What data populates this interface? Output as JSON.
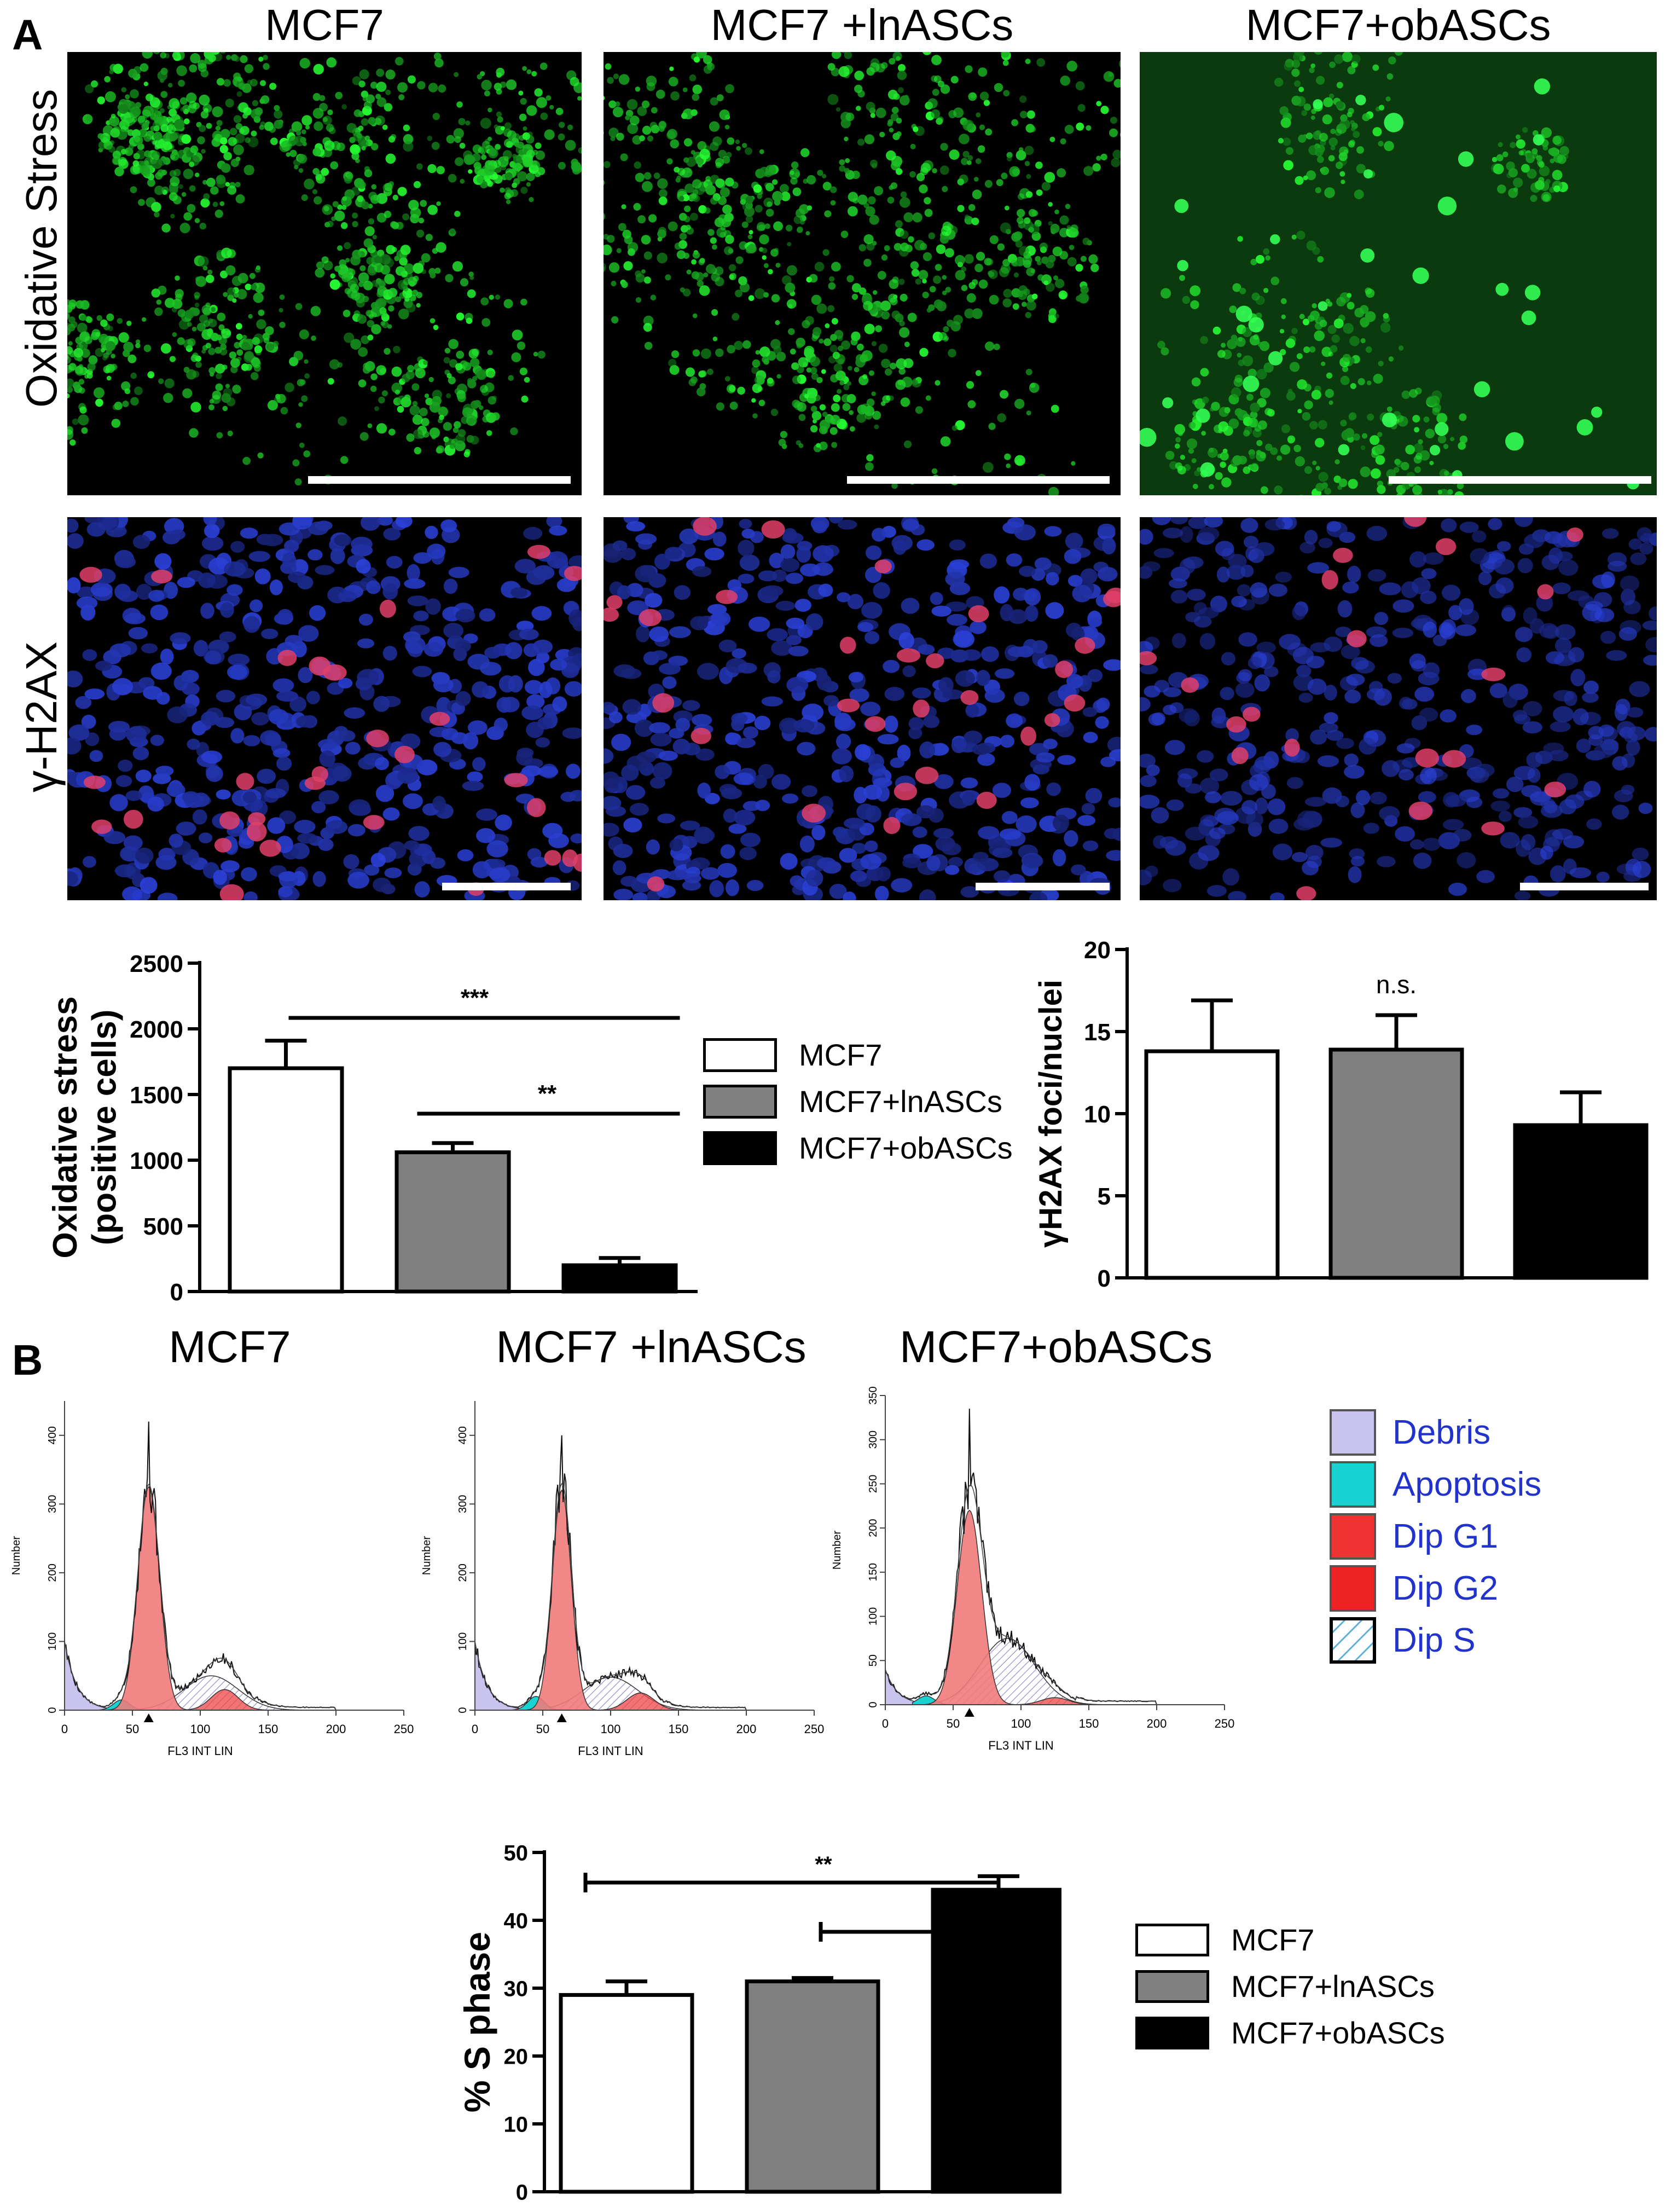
{
  "panel_a_label": "A",
  "panel_b_label": "B",
  "micrograph_columns": [
    "MCF7",
    "MCF7 +lnASCs",
    "MCF7+obASCs"
  ],
  "micrograph_rows": [
    "Oxidative Stress",
    "γ-H2AX"
  ],
  "colors": {
    "mcf7": "#ffffff",
    "lnascs": "#808080",
    "obascs": "#000000",
    "debris": "#c8c4ee",
    "apoptosis": "#19d3d3",
    "dip_g1": "#f07a7a",
    "dip_g2": "#ee4444",
    "legend_text_flow": "#2233cc"
  },
  "bar_legend": [
    "MCF7",
    "MCF7+lnASCs",
    "MCF7+obASCs"
  ],
  "flow_columns": [
    "MCF7",
    "MCF7 +lnASCs",
    "MCF7+obASCs"
  ],
  "flow_legend": [
    {
      "label": "Debris",
      "color": "#c8c4ee"
    },
    {
      "label": "Apoptosis",
      "color": "#19d3d3"
    },
    {
      "label": "Dip G1",
      "color": "#f07a7a"
    },
    {
      "label": "Dip G2",
      "color": "#ee4444"
    },
    {
      "label": "Dip S",
      "color": "hatch"
    }
  ],
  "chart_data": [
    {
      "id": "oxidative",
      "type": "bar",
      "ylabel": "Oxidative stress\n(positive cells)",
      "ylim": [
        0,
        2500
      ],
      "yticks": [
        0,
        500,
        1000,
        1500,
        2000,
        2500
      ],
      "categories": [
        "MCF7",
        "MCF7+lnASCs",
        "MCF7+obASCs"
      ],
      "values": [
        1700,
        1060,
        200
      ],
      "errors": [
        210,
        70,
        55
      ],
      "significance": [
        {
          "label": "***",
          "from": 0,
          "to": 2
        },
        {
          "label": "**",
          "from": 1,
          "to": 2
        }
      ]
    },
    {
      "id": "h2ax",
      "type": "bar",
      "ylabel": "γH2AX foci/nuclei",
      "ylim": [
        0,
        20
      ],
      "yticks": [
        0,
        5,
        10,
        15,
        20
      ],
      "categories": [
        "MCF7",
        "MCF7+lnASCs",
        "MCF7+obASCs"
      ],
      "values": [
        13.8,
        13.9,
        9.3
      ],
      "errors": [
        3.1,
        2.1,
        2.0
      ],
      "annotation": "n.s."
    },
    {
      "id": "flow_mcf7",
      "type": "area",
      "xlabel": "FL3 INT LIN",
      "ylabel": "Number",
      "xlim": [
        0,
        250
      ],
      "xticks": [
        0,
        50,
        100,
        150,
        200,
        250
      ],
      "ylim": [
        0,
        450
      ],
      "yticks": [
        0,
        100,
        200,
        300,
        400
      ],
      "peak_g1": 62,
      "g1_height": 325,
      "g1_width": 8,
      "histogram_peak": 420,
      "s_center": 108,
      "s_height": 50,
      "g2_center": 118,
      "g2_height": 30,
      "apoptosis_center": 42,
      "apoptosis_height": 15,
      "debris_height": 100
    },
    {
      "id": "flow_lnascs",
      "type": "area",
      "xlabel": "FL3 INT LIN",
      "ylabel": "Number",
      "xlim": [
        0,
        250
      ],
      "xticks": [
        0,
        50,
        100,
        150,
        200,
        250
      ],
      "ylim": [
        0,
        450
      ],
      "yticks": [
        0,
        100,
        200,
        300,
        400
      ],
      "peak_g1": 64,
      "g1_height": 320,
      "g1_width": 7,
      "histogram_peak": 400,
      "s_center": 100,
      "s_height": 48,
      "g2_center": 122,
      "g2_height": 25,
      "apoptosis_center": 45,
      "apoptosis_height": 20,
      "debris_height": 100
    },
    {
      "id": "flow_obascs",
      "type": "area",
      "xlabel": "FL3 INT LIN",
      "ylabel": "Number",
      "xlim": [
        0,
        250
      ],
      "xticks": [
        0,
        50,
        100,
        150,
        200,
        250
      ],
      "ylim": [
        0,
        350
      ],
      "yticks": [
        0,
        50,
        100,
        150,
        200,
        250,
        300,
        350
      ],
      "peak_g1": 62,
      "g1_height": 220,
      "g1_width": 9,
      "histogram_peak": 335,
      "s_center": 90,
      "s_height": 75,
      "g2_center": 125,
      "g2_height": 8,
      "apoptosis_center": 30,
      "apoptosis_height": 10,
      "debris_height": 40
    },
    {
      "id": "sphase",
      "type": "bar",
      "ylabel": "% S phase",
      "ylim": [
        0,
        50
      ],
      "yticks": [
        0,
        10,
        20,
        30,
        40,
        50
      ],
      "categories": [
        "MCF7",
        "MCF7+lnASCs",
        "MCF7+obASCs"
      ],
      "values": [
        29,
        31,
        44.5
      ],
      "errors": [
        2.0,
        0.5,
        2.0
      ],
      "significance": [
        {
          "label": "**",
          "from": 0,
          "to": 2
        },
        {
          "label": "",
          "from": 1,
          "to": 2
        }
      ]
    }
  ]
}
